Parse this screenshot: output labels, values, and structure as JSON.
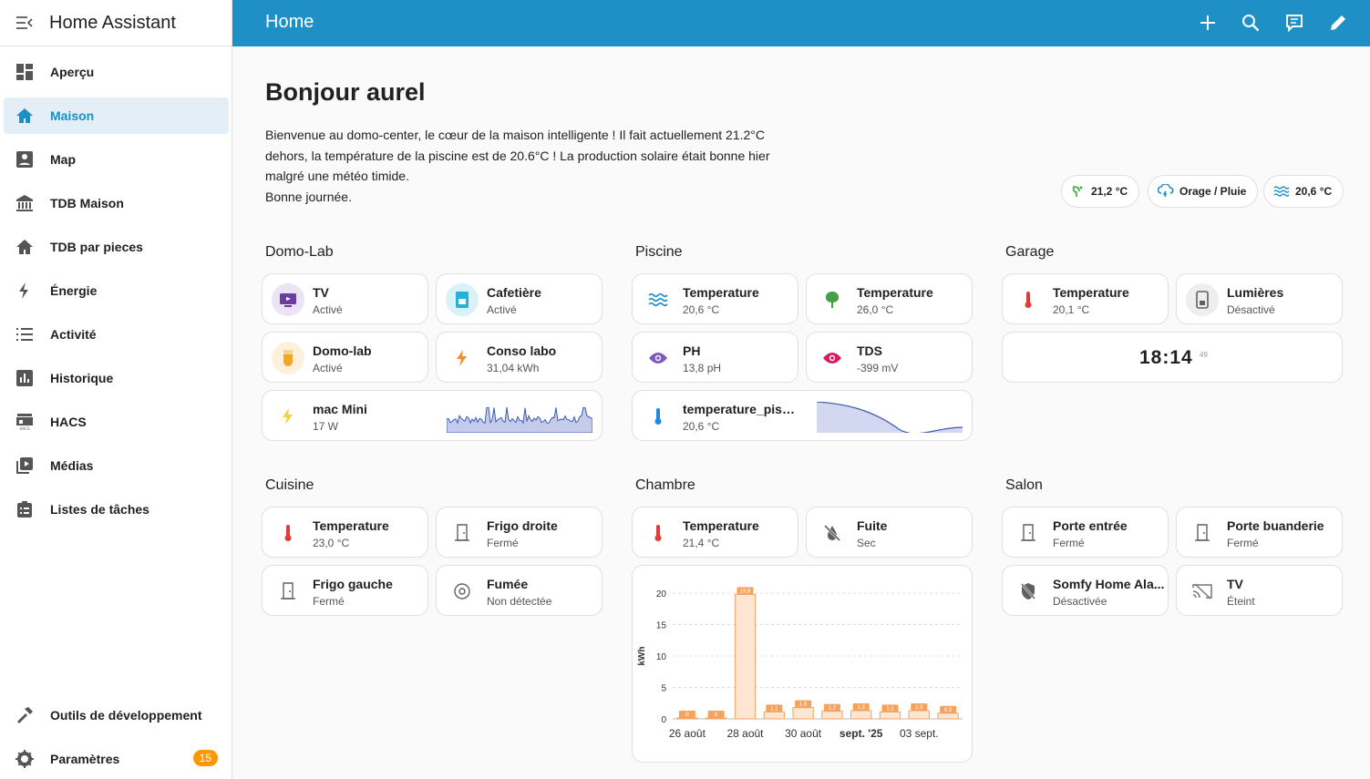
{
  "app_title": "Home Assistant",
  "sidebar": {
    "items": [
      {
        "label": "Aperçu",
        "icon": "dashboard-icon"
      },
      {
        "label": "Maison",
        "icon": "home-icon",
        "active": true
      },
      {
        "label": "Map",
        "icon": "account-box-icon"
      },
      {
        "label": "TDB Maison",
        "icon": "bank-icon"
      },
      {
        "label": "TDB par pieces",
        "icon": "home-icon"
      },
      {
        "label": "Énergie",
        "icon": "lightning-icon"
      },
      {
        "label": "Activité",
        "icon": "list-icon"
      },
      {
        "label": "Historique",
        "icon": "bar-chart-icon"
      },
      {
        "label": "HACS",
        "icon": "hacs-icon"
      },
      {
        "label": "Médias",
        "icon": "play-box-icon"
      },
      {
        "label": "Listes de tâches",
        "icon": "clipboard-list-icon"
      }
    ],
    "dev_tools": "Outils de développement",
    "settings": "Paramètres",
    "settings_badge": "15"
  },
  "header": {
    "title": "Home"
  },
  "greeting": "Bonjour aurel",
  "intro": [
    "Bienvenue au domo-center, le cœur de la maison intelligente ! Il fait actuellement 21.2°C",
    "dehors, la température de la piscine est de 20.6°C ! La production solaire était bonne hier",
    "malgré une météo timide.",
    "Bonne journée."
  ],
  "chips": [
    {
      "label": "21,2 °C",
      "icon": "thermo-leaf-icon"
    },
    {
      "label": "Orage / Pluie",
      "icon": "cloud-rain-icon"
    },
    {
      "label": "20,6 °C",
      "icon": "waves-icon"
    }
  ],
  "sections": {
    "domolab": {
      "title": "Domo-Lab",
      "cards": [
        {
          "name": "TV",
          "state": "Activé"
        },
        {
          "name": "Cafetière",
          "state": "Activé"
        },
        {
          "name": "Domo-lab",
          "state": "Activé"
        },
        {
          "name": "Conso labo",
          "state": "31,04 kWh"
        },
        {
          "name": "mac Mini",
          "state": "17 W"
        }
      ]
    },
    "piscine": {
      "title": "Piscine",
      "cards": [
        {
          "name": "Temperature",
          "state": "20,6 °C"
        },
        {
          "name": "Temperature",
          "state": "26,0 °C"
        },
        {
          "name": "PH",
          "state": "13,8 pH"
        },
        {
          "name": "TDS",
          "state": "-399 mV"
        },
        {
          "name": "temperature_piscin...",
          "state": "20,6 °C"
        }
      ]
    },
    "garage": {
      "title": "Garage",
      "cards": [
        {
          "name": "Temperature",
          "state": "20,1 °C"
        },
        {
          "name": "Lumières",
          "state": "Désactivé"
        }
      ],
      "clock": {
        "time": "18:14",
        "seconds": "49"
      }
    },
    "cuisine": {
      "title": "Cuisine",
      "cards": [
        {
          "name": "Temperature",
          "state": "23,0 °C"
        },
        {
          "name": "Frigo droite",
          "state": "Fermé"
        },
        {
          "name": "Frigo gauche",
          "state": "Fermé"
        },
        {
          "name": "Fumée",
          "state": "Non détectée"
        }
      ]
    },
    "chambre": {
      "title": "Chambre",
      "cards": [
        {
          "name": "Temperature",
          "state": "21,4 °C"
        },
        {
          "name": "Fuite",
          "state": "Sec"
        }
      ]
    },
    "salon": {
      "title": "Salon",
      "cards": [
        {
          "name": "Porte entrée",
          "state": "Fermé"
        },
        {
          "name": "Porte buanderie",
          "state": "Fermé"
        },
        {
          "name": "Somfy Home Ala...",
          "state": "Désactivée"
        },
        {
          "name": "TV",
          "state": "Éteint"
        }
      ]
    }
  },
  "chart_data": {
    "type": "bar",
    "ylabel": "kWh",
    "ylim": [
      0,
      20
    ],
    "yticks": [
      0,
      5,
      10,
      15,
      20
    ],
    "values": [
      0,
      0,
      19.8,
      1.1,
      1.8,
      1.2,
      1.3,
      1.1,
      1.3,
      0.9
    ],
    "labels": [
      "0",
      "0",
      "19.8",
      "1.1",
      "1.8",
      "1.2",
      "1.3",
      "1.1",
      "1.3",
      "0.9"
    ],
    "xticks": [
      {
        "label": "26 août",
        "at": 0
      },
      {
        "label": "28 août",
        "at": 2
      },
      {
        "label": "30 août",
        "at": 4
      },
      {
        "label": "sept. '25",
        "at": 6,
        "bold": true
      },
      {
        "label": "03 sept.",
        "at": 8
      }
    ],
    "color": "#f5a25d"
  }
}
